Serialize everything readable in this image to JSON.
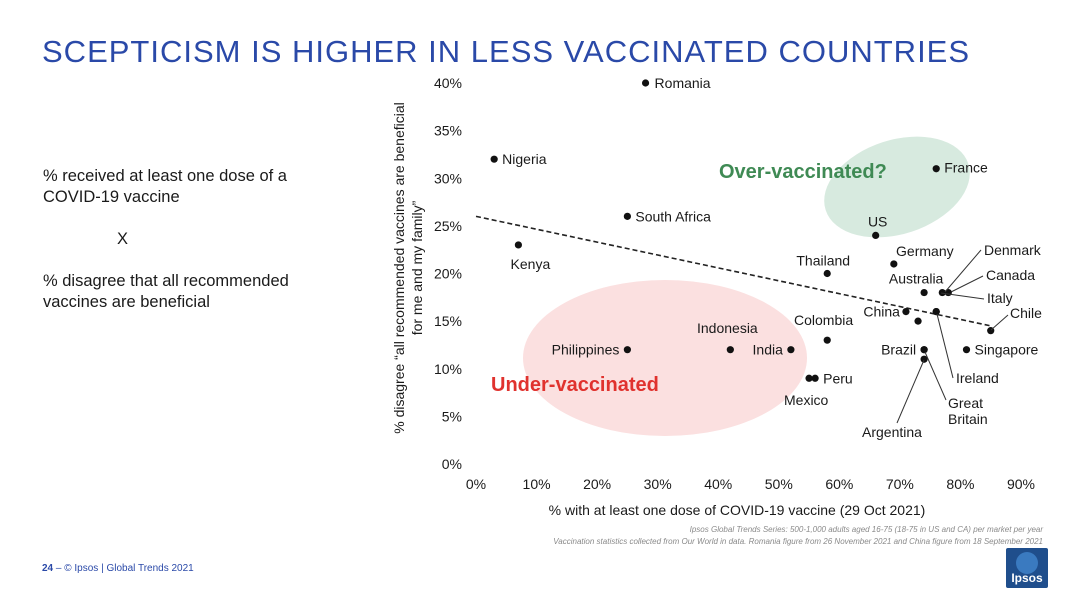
{
  "title": "SCEPTICISM IS HIGHER IN LESS VACCINATED COUNTRIES",
  "side_text": {
    "line1": "% received at least one dose of a",
    "line2": "COVID-19 vaccine",
    "cross": "X",
    "line3": "% disagree that all recommended",
    "line4": "vaccines are beneficial"
  },
  "footnotes": {
    "line1": "Ipsos Global Trends Series: 500-1,000 adults aged 16-75 (18-75 in US and CA) per market per year",
    "line2": "Vaccination statistics collected from Our World in data. Romania figure from 26 November 2021  and China figure from 18 September 2021"
  },
  "footer": {
    "page": "24",
    "separator": "–",
    "text": "© Ipsos | Global Trends 2021"
  },
  "logo": {
    "text": "Ipsos"
  },
  "colors": {
    "title": "#2a49a8",
    "over_region_fill": "#d7eadf",
    "over_region_text": "#3f8a54",
    "under_region_fill": "#fbe0e0",
    "under_region_text": "#e0322e",
    "points": "#111111"
  },
  "chart_data": {
    "type": "scatter",
    "xlabel": "% with at least one dose of COVID-19 vaccine (29 Oct 2021)",
    "ylabel_line1": "% disagree “all recommended vaccines are beneficial",
    "ylabel_line2": "for me and my family”",
    "xlim": [
      0,
      90
    ],
    "ylim": [
      0,
      40
    ],
    "xticks": [
      0,
      10,
      20,
      30,
      40,
      50,
      60,
      70,
      80,
      90
    ],
    "xtick_labels": [
      "0%",
      "10%",
      "20%",
      "30%",
      "40%",
      "50%",
      "60%",
      "70%",
      "80%",
      "90%"
    ],
    "yticks": [
      0,
      5,
      10,
      15,
      20,
      25,
      30,
      35,
      40
    ],
    "ytick_labels": [
      "0%",
      "5%",
      "10%",
      "15%",
      "20%",
      "25%",
      "30%",
      "35%",
      "40%"
    ],
    "trendline": {
      "style": "dashed",
      "x": [
        0,
        85
      ],
      "y": [
        26,
        14.5
      ]
    },
    "regions": [
      {
        "label": "Over-vaccinated?",
        "kind": "over"
      },
      {
        "label": "Under-vaccinated",
        "kind": "under"
      }
    ],
    "points": [
      {
        "name": "Romania",
        "x": 28,
        "y": 40
      },
      {
        "name": "Nigeria",
        "x": 3,
        "y": 32
      },
      {
        "name": "France",
        "x": 76,
        "y": 31
      },
      {
        "name": "South Africa",
        "x": 25,
        "y": 26
      },
      {
        "name": "US",
        "x": 66,
        "y": 24
      },
      {
        "name": "Kenya",
        "x": 7,
        "y": 23
      },
      {
        "name": "Germany",
        "x": 69,
        "y": 21
      },
      {
        "name": "Thailand",
        "x": 58,
        "y": 20
      },
      {
        "name": "Australia",
        "x": 74,
        "y": 18
      },
      {
        "name": "Denmark",
        "x": 77,
        "y": 18
      },
      {
        "name": "Canada",
        "x": 78,
        "y": 18
      },
      {
        "name": "Italy",
        "x": 76,
        "y": 16
      },
      {
        "name": "China",
        "x": 71,
        "y": 16
      },
      {
        "name": "Chile",
        "x": 85,
        "y": 14
      },
      {
        "name": "Colombia",
        "x": 73,
        "y": 15
      },
      {
        "name": "Indonesia",
        "x": 58,
        "y": 13
      },
      {
        "name": "Philippines",
        "x": 25,
        "y": 12
      },
      {
        "name": "India",
        "x": 52,
        "y": 12
      },
      {
        "name": "Brazil",
        "x": 74,
        "y": 12
      },
      {
        "name": "Singapore",
        "x": 81,
        "y": 12
      },
      {
        "name": "Ireland",
        "x": 74,
        "y": 12
      },
      {
        "name": "Argentina",
        "x": 74,
        "y": 11
      },
      {
        "name": "Peru",
        "x": 56,
        "y": 9
      },
      {
        "name": "Mexico",
        "x": 55,
        "y": 9
      },
      {
        "name": "Great Britain",
        "x": 76,
        "y": 16
      },
      {
        "name": "Indonesia-2",
        "x": 42,
        "y": 12
      }
    ]
  }
}
